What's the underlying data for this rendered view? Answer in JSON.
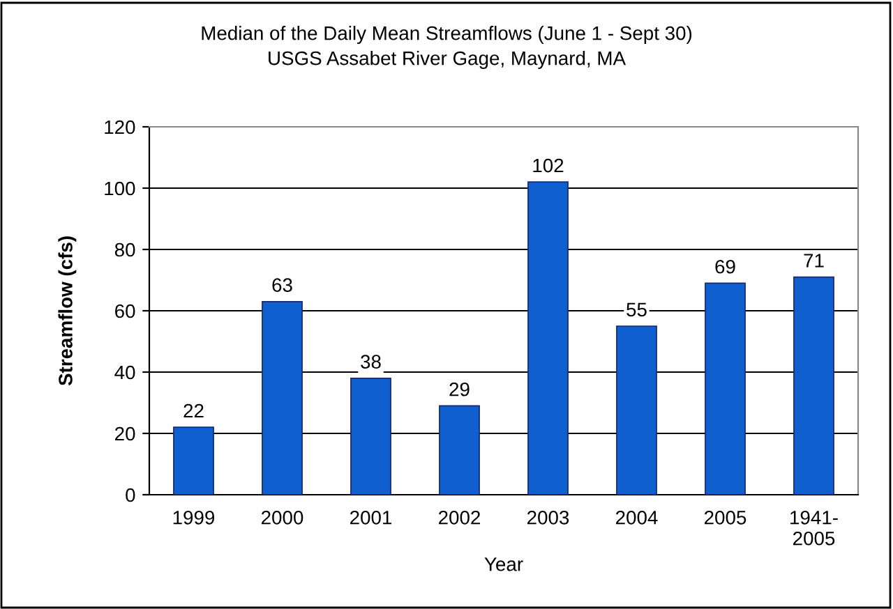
{
  "chart_data": {
    "type": "bar",
    "title": "Median of the Daily Mean Streamflows (June 1 - Sept 30)\nUSGS Assabet River Gage, Maynard, MA",
    "xlabel": "Year",
    "ylabel": "Streamflow (cfs)",
    "categories": [
      "1999",
      "2000",
      "2001",
      "2002",
      "2003",
      "2004",
      "2005",
      "1941-\n2005"
    ],
    "values": [
      22,
      63,
      38,
      29,
      102,
      55,
      69,
      71
    ],
    "color": "#0f5fd0",
    "ylim": [
      0,
      120
    ],
    "yticks": [
      0,
      20,
      40,
      60,
      80,
      100,
      120
    ],
    "grid": "y",
    "data_labels": true,
    "legend": false
  }
}
